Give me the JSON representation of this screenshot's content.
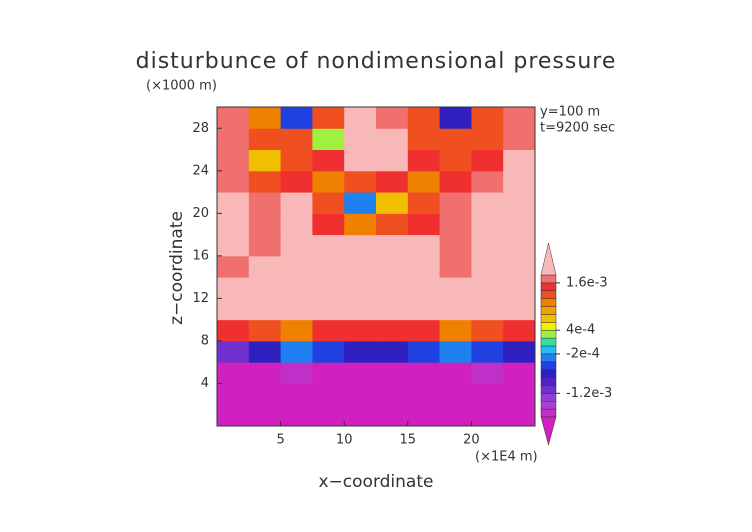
{
  "chart_data": {
    "type": "contour",
    "title": "disturbunce of nondimensional pressure",
    "y_unit": "(×1000 m)",
    "x_unit": "(×1E4 m)",
    "annotations": [
      "y=100 m",
      "t=9200 sec"
    ],
    "xlabel": "x−coordinate",
    "ylabel": "z−coordinate",
    "xlim": [
      0,
      25
    ],
    "ylim": [
      0,
      30
    ],
    "xticks": [
      5,
      10,
      15,
      20
    ],
    "yticks": [
      4,
      8,
      12,
      16,
      20,
      24,
      28
    ],
    "x": [
      1.25,
      3.75,
      6.25,
      8.75,
      11.25,
      13.75,
      16.25,
      18.75,
      21.25,
      23.75
    ],
    "y": [
      1,
      3,
      5,
      7,
      9,
      11,
      13,
      15,
      17,
      19,
      21,
      23,
      25,
      27,
      29
    ],
    "z": [
      [
        -0.0025,
        -0.0025,
        -0.0025,
        -0.0025,
        -0.0025,
        -0.0025,
        -0.0025,
        -0.0025,
        -0.0025,
        -0.0025
      ],
      [
        -0.0025,
        -0.0025,
        -0.0025,
        -0.0025,
        -0.0025,
        -0.0025,
        -0.0025,
        -0.0025,
        -0.0025,
        -0.0025
      ],
      [
        -0.0019,
        -0.0019,
        -0.0017,
        -0.0019,
        -0.0019,
        -0.0019,
        -0.0019,
        -0.0019,
        -0.0017,
        -0.0019
      ],
      [
        -0.0012,
        -0.0008,
        -0.0004,
        -0.0006,
        -0.0008,
        -0.0008,
        -0.0006,
        -0.0004,
        -0.0006,
        -0.0008
      ],
      [
        0.0014,
        0.0013,
        0.001,
        0.0014,
        0.0014,
        0.0014,
        0.0014,
        0.0011,
        0.0012,
        0.0014
      ],
      [
        0.0019,
        0.0019,
        0.0019,
        0.0019,
        0.0019,
        0.0019,
        0.0019,
        0.0019,
        0.0019,
        0.0019
      ],
      [
        0.002,
        0.002,
        0.002,
        0.002,
        0.002,
        0.002,
        0.002,
        0.002,
        0.002,
        0.002
      ],
      [
        0.0017,
        0.0019,
        0.0019,
        0.0019,
        0.0019,
        0.0019,
        0.0019,
        0.0017,
        0.0019,
        0.0019
      ],
      [
        0.0019,
        0.0017,
        0.0019,
        0.0019,
        0.0019,
        0.0019,
        0.0019,
        0.0017,
        0.0019,
        0.0019
      ],
      [
        0.0019,
        0.0017,
        0.0019,
        0.0015,
        0.001,
        0.0012,
        0.0015,
        0.0017,
        0.0019,
        0.0019
      ],
      [
        0.0019,
        0.0016,
        0.0019,
        0.0012,
        -0.0004,
        0.0006,
        0.0012,
        0.0016,
        0.0019,
        0.0019
      ],
      [
        0.0017,
        0.0013,
        0.0015,
        0.001,
        0.0012,
        0.0014,
        0.001,
        0.0014,
        0.0017,
        0.0019
      ],
      [
        0.0016,
        0.0006,
        0.0012,
        0.0015,
        0.0019,
        0.0019,
        0.0014,
        0.0012,
        0.0015,
        0.0018
      ],
      [
        0.0017,
        0.0012,
        0.0013,
        0.0002,
        0.0019,
        0.0019,
        0.0013,
        0.0012,
        0.0013,
        0.0017
      ],
      [
        0.0017,
        0.001,
        -0.0006,
        0.0012,
        0.0019,
        0.0017,
        0.0012,
        -0.0008,
        0.0013,
        0.0016
      ]
    ],
    "levels": [
      -0.0018,
      -0.0016,
      -0.0014,
      -0.0012,
      -0.001,
      -0.0008,
      -0.0006,
      -0.0004,
      -0.0002,
      0,
      0.0002,
      0.0004,
      0.0006,
      0.0008,
      0.001,
      0.0012,
      0.0014,
      0.0016,
      0.0018
    ],
    "colors": [
      "#d020c0",
      "#c030c8",
      "#a840d0",
      "#9040d8",
      "#7030d0",
      "#5020c8",
      "#3020c0",
      "#2040e0",
      "#2080f0",
      "#20c0f0",
      "#30e0a0",
      "#a0f040",
      "#f0f000",
      "#f0c000",
      "#f0a000",
      "#f08000",
      "#f05020",
      "#f03030",
      "#f07070",
      "#f8b8b8"
    ],
    "colorbar_ticks": [
      {
        "value": 0.0016,
        "label": "1.6e-3"
      },
      {
        "value": 0.0004,
        "label": "4e-4"
      },
      {
        "value": -0.0002,
        "label": "-2e-4"
      },
      {
        "value": -0.0012,
        "label": "-1.2e-3"
      }
    ]
  }
}
